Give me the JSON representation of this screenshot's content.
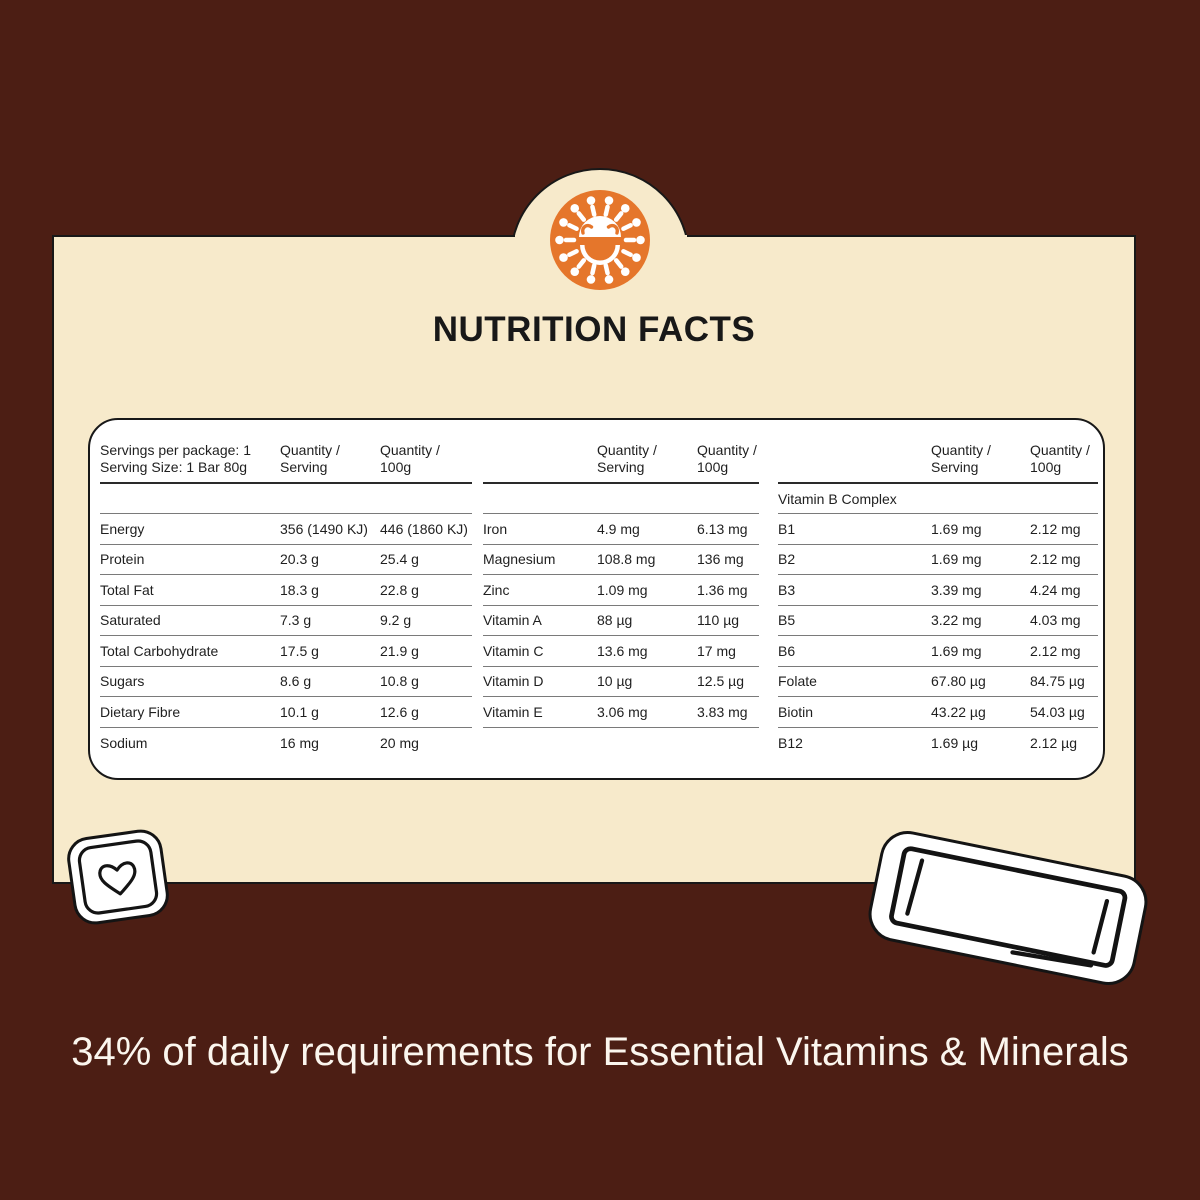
{
  "page": {
    "caption": "34% of daily requirements for Essential Vitamins & Minerals"
  },
  "card": {
    "title": "NUTRITION FACTS"
  },
  "icons": {
    "brand": "sun-smiley-icon",
    "heart": "heart-icon",
    "bar": "snack-bar-icon"
  },
  "colors": {
    "background": "#4C1E14",
    "card": "#F7EACB",
    "accent_orange": "#E5762B",
    "panel": "#FFFFFF",
    "ink": "#1F1F1F",
    "caption_text": "#FBF6EE"
  },
  "table": {
    "groups": [
      {
        "header": "Servings per package: 1\nServing Size: 1 Bar 80g",
        "col_serving": "Quantity /\nServing",
        "col_per100": "Quantity /\n100g",
        "section": "",
        "rows": [
          {
            "label": "Energy",
            "serving": "356 (1490 KJ)",
            "per100": "446 (1860 KJ)"
          },
          {
            "label": "Protein",
            "serving": "20.3 g",
            "per100": "25.4 g"
          },
          {
            "label": "Total Fat",
            "serving": "18.3 g",
            "per100": "22.8 g"
          },
          {
            "label": "Saturated",
            "serving": "7.3 g",
            "per100": "9.2 g"
          },
          {
            "label": "Total Carbohydrate",
            "serving": "17.5 g",
            "per100": "21.9 g"
          },
          {
            "label": "Sugars",
            "serving": "8.6 g",
            "per100": "10.8 g"
          },
          {
            "label": "Dietary Fibre",
            "serving": "10.1 g",
            "per100": "12.6 g"
          },
          {
            "label": "Sodium",
            "serving": "16 mg",
            "per100": "20 mg"
          }
        ]
      },
      {
        "header": "",
        "col_serving": "Quantity /\nServing",
        "col_per100": "Quantity /\n100g",
        "section": "",
        "rows": [
          {
            "label": "Iron",
            "serving": "4.9 mg",
            "per100": "6.13 mg"
          },
          {
            "label": "Magnesium",
            "serving": "108.8 mg",
            "per100": "136 mg"
          },
          {
            "label": "Zinc",
            "serving": "1.09 mg",
            "per100": "1.36 mg"
          },
          {
            "label": "Vitamin A",
            "serving": "88 µg",
            "per100": "110 µg"
          },
          {
            "label": "Vitamin C",
            "serving": "13.6 mg",
            "per100": "17 mg"
          },
          {
            "label": "Vitamin D",
            "serving": "10 µg",
            "per100": "12.5 µg"
          },
          {
            "label": "Vitamin E",
            "serving": "3.06 mg",
            "per100": "3.83 mg"
          }
        ]
      },
      {
        "header": "",
        "col_serving": "Quantity /\nServing",
        "col_per100": "Quantity /\n100g",
        "section": "Vitamin B Complex",
        "rows": [
          {
            "label": "B1",
            "serving": "1.69 mg",
            "per100": "2.12 mg"
          },
          {
            "label": "B2",
            "serving": "1.69 mg",
            "per100": "2.12 mg"
          },
          {
            "label": "B3",
            "serving": "3.39 mg",
            "per100": "4.24 mg"
          },
          {
            "label": "B5",
            "serving": "3.22 mg",
            "per100": "4.03 mg"
          },
          {
            "label": "B6",
            "serving": "1.69 mg",
            "per100": "2.12 mg"
          },
          {
            "label": "Folate",
            "serving": "67.80 µg",
            "per100": "84.75 µg"
          },
          {
            "label": "Biotin",
            "serving": "43.22 µg",
            "per100": "54.03 µg"
          },
          {
            "label": "B12",
            "serving": "1.69 µg",
            "per100": "2.12 µg"
          }
        ]
      }
    ]
  }
}
